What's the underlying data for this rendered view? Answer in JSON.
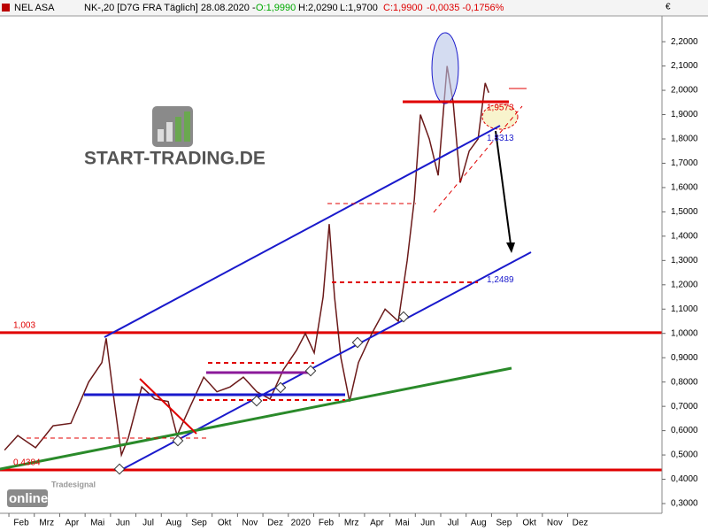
{
  "header": {
    "name": "NEL ASA",
    "info": "NK-,20 [D7G FRA  Täglich] 28.08.2020 -",
    "open": "O:1,9990",
    "high": "H:2,0290",
    "low": "L:1,9700",
    "close": "C:1,9900",
    "change": "-0,0035 -0,1756%"
  },
  "currency": "€",
  "logo": "START-TRADING.DE",
  "brand": {
    "small": "Tradesignal",
    "big": "online"
  },
  "chart_data": {
    "type": "line",
    "color": "#6b1a1a",
    "series": [
      {
        "name": "NEL ASA",
        "color": "#6b1a1a",
        "x": [
          -0.17,
          0.35,
          1.05,
          1.74,
          2.44,
          3.14,
          3.66,
          3.83,
          4.11,
          4.43,
          4.7,
          5.23,
          5.75,
          6.27,
          6.62,
          7.14,
          7.67,
          8.19,
          8.71,
          9.23,
          9.76,
          10.28,
          10.8,
          11.32,
          11.67,
          12.02,
          12.37,
          12.61,
          12.82,
          13.07,
          13.41,
          13.76,
          14.29,
          14.81,
          15.33,
          15.68,
          15.96,
          16.2,
          16.55,
          16.9,
          17.25,
          17.49,
          17.77,
          18.12,
          18.47,
          18.75,
          18.89
        ],
        "values": [
          0.52,
          0.58,
          0.53,
          0.62,
          0.63,
          0.8,
          0.88,
          0.98,
          0.75,
          0.5,
          0.57,
          0.78,
          0.73,
          0.72,
          0.58,
          0.7,
          0.82,
          0.76,
          0.78,
          0.82,
          0.76,
          0.73,
          0.85,
          0.93,
          1.0,
          0.92,
          1.15,
          1.45,
          1.15,
          0.9,
          0.72,
          0.88,
          1.0,
          1.1,
          1.05,
          1.3,
          1.55,
          1.9,
          1.8,
          1.65,
          2.1,
          1.95,
          1.62,
          1.75,
          1.8,
          2.03,
          1.99
        ]
      }
    ],
    "xlim": [
      -0.35,
      25.71
    ],
    "xticks": [
      {
        "value": 0,
        "label": "Feb"
      },
      {
        "value": 1,
        "label": "Mrz"
      },
      {
        "value": 2,
        "label": "Apr"
      },
      {
        "value": 3,
        "label": "Mai"
      },
      {
        "value": 4,
        "label": "Jun"
      },
      {
        "value": 5,
        "label": "Jul"
      },
      {
        "value": 6,
        "label": "Aug"
      },
      {
        "value": 7,
        "label": "Sep"
      },
      {
        "value": 8,
        "label": "Okt"
      },
      {
        "value": 9,
        "label": "Nov"
      },
      {
        "value": 10,
        "label": "Dez"
      },
      {
        "value": 11,
        "label": "2020"
      },
      {
        "value": 12,
        "label": "Feb"
      },
      {
        "value": 13,
        "label": "Mrz"
      },
      {
        "value": 14,
        "label": "Apr"
      },
      {
        "value": 15,
        "label": "Mai"
      },
      {
        "value": 16,
        "label": "Jun"
      },
      {
        "value": 17,
        "label": "Jul"
      },
      {
        "value": 18,
        "label": "Aug"
      },
      {
        "value": 19,
        "label": "Sep"
      },
      {
        "value": 20,
        "label": "Okt"
      },
      {
        "value": 21,
        "label": "Nov"
      },
      {
        "value": 22,
        "label": "Dez"
      }
    ],
    "ylim": [
      0.26,
      2.306
    ],
    "yticks": [
      {
        "value": 2.2,
        "label": "2,2000"
      },
      {
        "value": 2.1,
        "label": "2,1000"
      },
      {
        "value": 2.0,
        "label": "2,0000"
      },
      {
        "value": 1.9,
        "label": "1,9000"
      },
      {
        "value": 1.8,
        "label": "1,8000"
      },
      {
        "value": 1.7,
        "label": "1,7000"
      },
      {
        "value": 1.6,
        "label": "1,6000"
      },
      {
        "value": 1.5,
        "label": "1,5000"
      },
      {
        "value": 1.4,
        "label": "1,4000"
      },
      {
        "value": 1.3,
        "label": "1,3000"
      },
      {
        "value": 1.2,
        "label": "1,2000"
      },
      {
        "value": 1.1,
        "label": "1,1000"
      },
      {
        "value": 1.0,
        "label": "1,0000"
      },
      {
        "value": 0.9,
        "label": "0,9000"
      },
      {
        "value": 0.8,
        "label": "0,8000"
      },
      {
        "value": 0.7,
        "label": "0,7000"
      },
      {
        "value": 0.6,
        "label": "0,6000"
      },
      {
        "value": 0.5,
        "label": "0,5000"
      },
      {
        "value": 0.4,
        "label": "0,4000"
      },
      {
        "value": 0.3,
        "label": "0,3000"
      }
    ],
    "levels": [
      {
        "label": "1,003",
        "value": 1.003,
        "color": "#e00000"
      },
      {
        "label": "0,4384",
        "value": 0.4384,
        "color": "#e00000"
      }
    ],
    "annotations": [
      {
        "label": "1,9573",
        "value": 1.9573,
        "color": "#e00000"
      },
      {
        "label": "1,8313",
        "value": 1.8313,
        "color": "#1a1acc"
      },
      {
        "label": "1,2489",
        "value": 1.2489,
        "color": "#1a1acc"
      }
    ]
  }
}
